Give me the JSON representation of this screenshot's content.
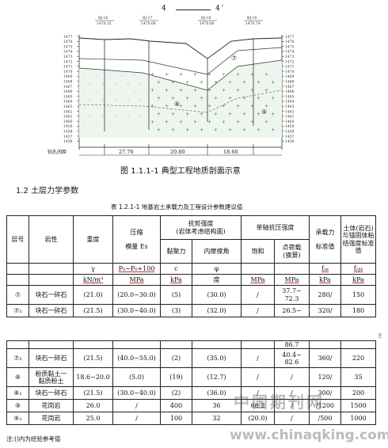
{
  "header": {
    "left": "4",
    "right": "4'"
  },
  "profile": {
    "boreholes": [
      {
        "id": "BJ-16",
        "elev": "1470.55"
      },
      {
        "id": "BJ-17",
        "elev": "1470.68"
      },
      {
        "id": "BJ-18",
        "elev": "1470.80"
      },
      {
        "id": "BJ-19",
        "elev": "1470.74"
      }
    ],
    "elevation_ticks": [
      "1477",
      "1476",
      "1475",
      "1474",
      "1473",
      "1472",
      "1471",
      "1470",
      "1469",
      "1468",
      "1467",
      "1466",
      "1465",
      "1464",
      "1463",
      "1462",
      "1461",
      "1460",
      "1459",
      "1458",
      "1457",
      "1456"
    ],
    "distance_label": "钻孔间距",
    "distances": [
      "27.70",
      "20.80",
      "18.60"
    ],
    "layer_symbols": [
      "⑦",
      "⑧",
      "⑨"
    ]
  },
  "figure_caption": "图 1.1.1-1 典型工程地质剖面示意",
  "section_heading": "1.2 土层力学参数",
  "table_caption": "表 1.2.1-1 地基岩土承载力及工程设计参数建议值",
  "table": {
    "h_layer": "层号",
    "h_name": "岩性",
    "h_density": "重度",
    "h_modulus_1": "压缩",
    "h_modulus_2": "模量 Es",
    "h_shear_1": "抗剪强度",
    "h_shear_2": "(岩体考虑结构面)",
    "h_cohesion": "黏聚力",
    "h_friction": "内摩擦角",
    "h_ucs": "单轴抗压强度",
    "h_saturated": "饱和",
    "h_pointload_1": "点荷载",
    "h_pointload_2": "(换算)",
    "h_bearing_1": "承载力",
    "h_bearing_2": "标准值",
    "h_pile_1": "土体(岩石)",
    "h_pile_2": "与锚固体粘",
    "h_pile_3": "结强度标准",
    "h_pile_4": "值",
    "sym_density": "γ",
    "sym_modulus": "P₀~P₀+100",
    "sym_cohesion": "c",
    "sym_friction": "φ",
    "sym_bearing": "fₐₖ",
    "sym_pile": "fᵣᵦₖ",
    "u_density": "kN/m³",
    "u_modulus": "MPa",
    "u_cohesion": "kPa",
    "u_friction": "度",
    "u_saturated": "MPa",
    "u_pointload": "MPa",
    "u_bearing": "kPa",
    "u_pile": "kPa",
    "rows_top": [
      [
        "⑦",
        "块石一碎石",
        "(21.0)",
        "(20.0~30.0)",
        "(5)",
        "(30.0)",
        "/",
        "37.7~\n72.3",
        "280/",
        "150"
      ],
      [
        "⑦₁",
        "块石一碎石",
        "(21.5)",
        "(30.0~40.0)",
        "(3)",
        "(32.0)",
        "/",
        "26.5~",
        "320/",
        "180"
      ]
    ],
    "cont_fragment": "86.7",
    "rows_bottom": [
      [
        "⑦₂",
        "块石一碎石",
        "(21.5)",
        "(40.0~55.0)",
        "(2)",
        "(35.0)",
        "/",
        "40.4~\n82.6",
        "360/",
        "220"
      ],
      [
        "⑧",
        "粉质黏土一\n黏质粉土",
        "18.6~20.0",
        "(5.0)",
        "(19)",
        "(12.7)",
        "/",
        "/",
        "120/",
        "35"
      ],
      [
        "⑧₁",
        "块石一碎石",
        "(21.5)",
        "(30.0~40.0)",
        "(2)",
        "(36.0)",
        "/",
        "/",
        "300/",
        "200"
      ],
      [
        "⑨",
        "花岗岩",
        "26.0",
        "/",
        "400",
        "36",
        "68.2",
        "/",
        "/1200",
        "1500"
      ],
      [
        "⑨₁",
        "花岗岩",
        "25.0",
        "/",
        "100",
        "32",
        "(20.0)",
        "/",
        "/500",
        "1000"
      ]
    ]
  },
  "note": "注:()内为经验参考值",
  "watermark": {
    "cn": "中国期刊网",
    "url": "www.chinaqking.com"
  },
  "side_mark": "E"
}
